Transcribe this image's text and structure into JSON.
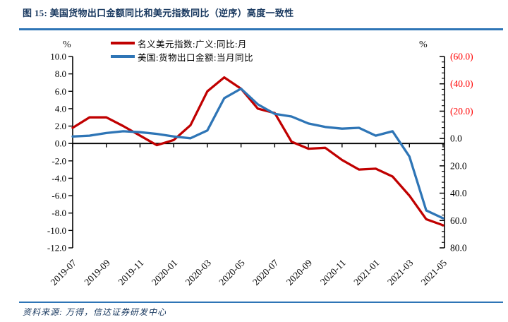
{
  "header": {
    "title": "图 15: 美国货物出口金额同比和美元指数同比（逆序）高度一致性"
  },
  "footer": {
    "source_label": "资料来源: 万得，信达证券研发中心"
  },
  "colors": {
    "accent_rule": "#2E75B6",
    "title_text": "#17375E",
    "red_series": "#C00000",
    "blue_series": "#2E75B6",
    "negative_right_ticks": "#FF0000",
    "axis": "#000000"
  },
  "chart_data": {
    "type": "line",
    "x": [
      "2019-07",
      "2019-08",
      "2019-09",
      "2019-10",
      "2019-11",
      "2019-12",
      "2020-01",
      "2020-02",
      "2020-03",
      "2020-04",
      "2020-05",
      "2020-06",
      "2020-07",
      "2020-08",
      "2020-09",
      "2020-10",
      "2020-11",
      "2020-12",
      "2021-01",
      "2021-02",
      "2021-03",
      "2021-04",
      "2021-05"
    ],
    "x_tick_labels": [
      "2019-07",
      "2019-09",
      "2019-11",
      "2020-01",
      "2020-03",
      "2020-05",
      "2020-07",
      "2020-09",
      "2020-11",
      "2021-01",
      "2021-03",
      "2021-05"
    ],
    "series": [
      {
        "name": "名义美元指数:广义:同比:月",
        "color": "#C00000",
        "axis": "left",
        "values": [
          1.8,
          3.0,
          3.0,
          2.0,
          0.9,
          -0.2,
          0.4,
          2.1,
          6.0,
          7.6,
          6.3,
          4.0,
          3.5,
          0.2,
          -0.6,
          -0.5,
          -1.9,
          -3.0,
          -2.9,
          -3.8,
          -6.0,
          -8.7,
          -9.4
        ]
      },
      {
        "name": "美国:货物出口金额:当月同比",
        "color": "#2E75B6",
        "axis": "left",
        "values": [
          0.8,
          0.9,
          1.2,
          1.4,
          1.3,
          1.1,
          0.8,
          0.6,
          1.5,
          5.2,
          6.3,
          4.5,
          3.4,
          3.1,
          2.3,
          1.9,
          1.7,
          1.8,
          0.9,
          1.4,
          -1.5,
          -7.7,
          -8.6
        ]
      }
    ],
    "left_axis": {
      "label": "%",
      "min": -12.0,
      "max": 10.0,
      "tick_step": 2.0
    },
    "right_axis": {
      "label": "%",
      "top_value": -60.0,
      "bottom_value": 80.0,
      "tick_step": 20.0,
      "minor_step": 4.0,
      "inverted": true,
      "negative_format": "parentheses"
    },
    "legend_position": "top",
    "grid": false,
    "title": "美国货物出口金额同比和美元指数同比（逆序）高度一致性"
  }
}
